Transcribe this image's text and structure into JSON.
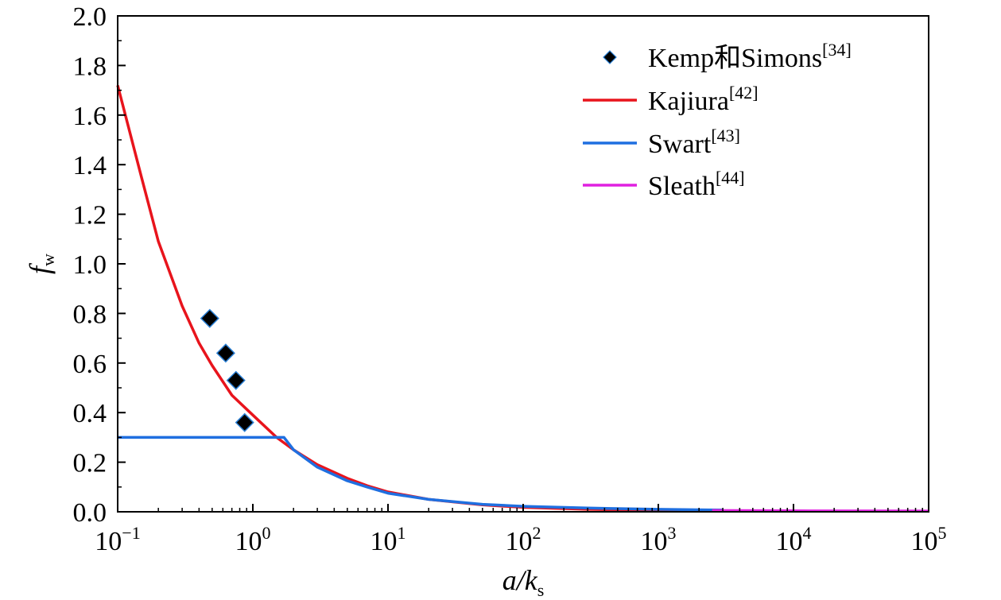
{
  "chart_data": {
    "type": "line",
    "xscale": "log",
    "xlim": [
      0.1,
      100000
    ],
    "ylim": [
      0.0,
      2.0
    ],
    "xlabel": {
      "main": "a/k",
      "sub": "s"
    },
    "ylabel": {
      "main": "f",
      "sub": "w"
    },
    "xticks": [
      {
        "base": "10",
        "exp": "−1",
        "value": 0.1
      },
      {
        "base": "10",
        "exp": "0",
        "value": 1
      },
      {
        "base": "10",
        "exp": "1",
        "value": 10
      },
      {
        "base": "10",
        "exp": "2",
        "value": 100
      },
      {
        "base": "10",
        "exp": "3",
        "value": 1000
      },
      {
        "base": "10",
        "exp": "4",
        "value": 10000
      },
      {
        "base": "10",
        "exp": "5",
        "value": 100000
      }
    ],
    "yticks": [
      "0.0",
      "0.2",
      "0.4",
      "0.6",
      "0.8",
      "1.0",
      "1.2",
      "1.4",
      "1.6",
      "1.8",
      "2.0"
    ],
    "legend_position": "top-right",
    "grid": false,
    "series": [
      {
        "name": "Kemp和Simons",
        "ref": "[34]",
        "kind": "scatter",
        "color": "#000000",
        "points": [
          [
            0.48,
            0.78
          ],
          [
            0.63,
            0.64
          ],
          [
            0.75,
            0.53
          ],
          [
            0.87,
            0.36
          ]
        ]
      },
      {
        "name": "Kajiura",
        "ref": "[42]",
        "kind": "line",
        "color": "#e8141c",
        "points": [
          [
            0.1,
            1.72
          ],
          [
            0.15,
            1.35
          ],
          [
            0.2,
            1.09
          ],
          [
            0.3,
            0.83
          ],
          [
            0.4,
            0.68
          ],
          [
            0.5,
            0.59
          ],
          [
            0.7,
            0.47
          ],
          [
            1,
            0.39
          ],
          [
            1.5,
            0.3
          ],
          [
            2,
            0.25
          ],
          [
            3,
            0.19
          ],
          [
            5,
            0.135
          ],
          [
            7,
            0.105
          ],
          [
            10,
            0.08
          ],
          [
            20,
            0.05
          ],
          [
            50,
            0.028
          ],
          [
            100,
            0.018
          ],
          [
            300,
            0.01
          ],
          [
            1000,
            0.005
          ],
          [
            2500,
            0.004
          ]
        ]
      },
      {
        "name": "Swart",
        "ref": "[43]",
        "kind": "line",
        "color": "#1f6fe0",
        "points": [
          [
            0.1,
            0.3
          ],
          [
            1.7,
            0.3
          ],
          [
            2,
            0.25
          ],
          [
            3,
            0.18
          ],
          [
            5,
            0.125
          ],
          [
            7,
            0.1
          ],
          [
            10,
            0.075
          ],
          [
            20,
            0.05
          ],
          [
            50,
            0.03
          ],
          [
            100,
            0.022
          ],
          [
            300,
            0.015
          ],
          [
            1000,
            0.01
          ],
          [
            3000,
            0.007
          ]
        ]
      },
      {
        "name": "Sleath",
        "ref": "[44]",
        "kind": "line",
        "color": "#e020e0",
        "points": [
          [
            2500,
            0.005
          ],
          [
            10000,
            0.004
          ],
          [
            100000,
            0.003
          ]
        ]
      }
    ]
  }
}
